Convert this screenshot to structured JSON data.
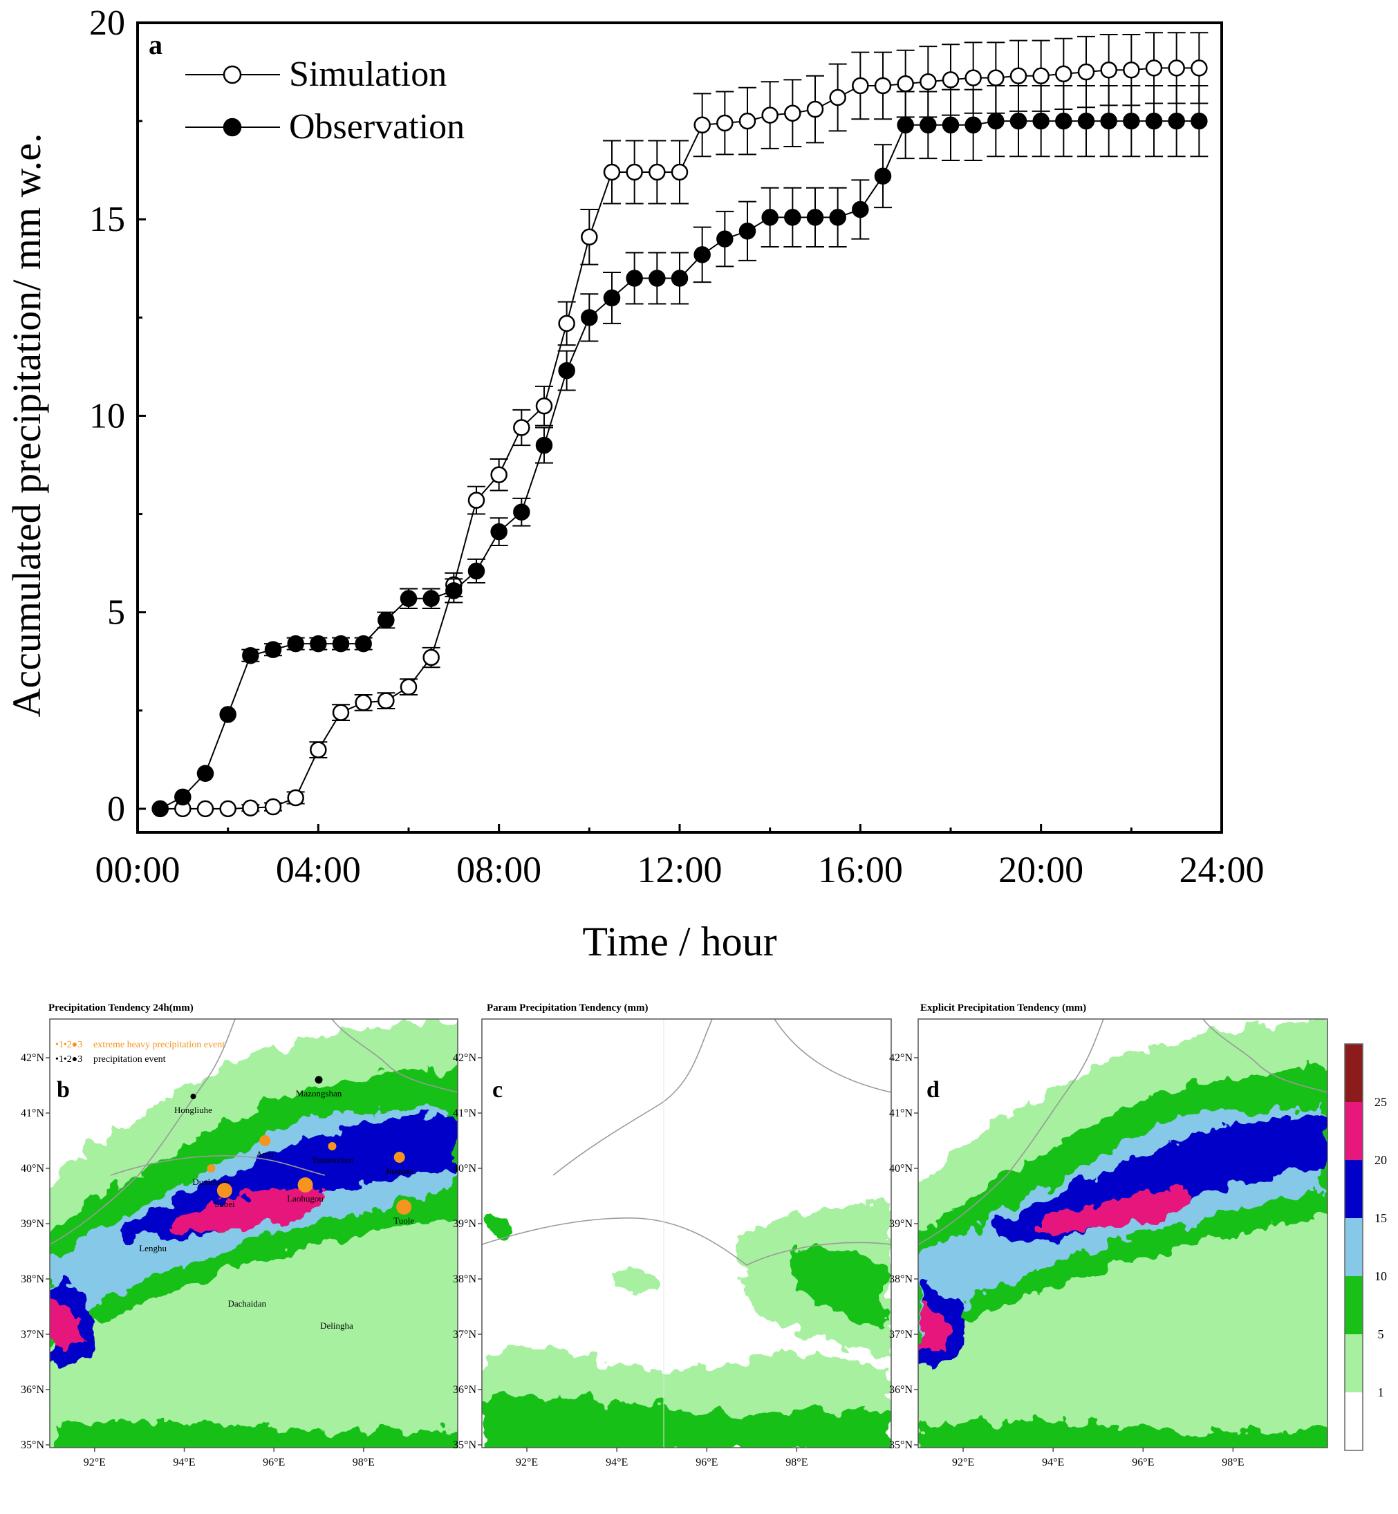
{
  "chart_data": [
    {
      "panel": "a",
      "type": "line",
      "xlabel": "Time / hour",
      "ylabel": "Accumulated precipitation/ mm w.e.",
      "xlim": [
        0,
        24
      ],
      "ylim": [
        -0.6,
        20
      ],
      "x_tick_labels": [
        "00:00",
        "04:00",
        "08:00",
        "12:00",
        "16:00",
        "20:00",
        "24:00"
      ],
      "x_tick_values": [
        0,
        4,
        8,
        12,
        16,
        20,
        24
      ],
      "y_tick_values": [
        0,
        5,
        10,
        15,
        20
      ],
      "y_tick_labels": [
        "0",
        "5",
        "10",
        "15",
        "20"
      ],
      "legend_position": "top-left",
      "x": [
        0.5,
        1,
        1.5,
        2,
        2.5,
        3,
        3.5,
        4,
        4.5,
        5,
        5.5,
        6,
        6.5,
        7,
        7.5,
        8,
        8.5,
        9,
        9.5,
        10,
        10.5,
        11,
        11.5,
        12,
        12.5,
        13,
        13.5,
        14,
        14.5,
        15,
        15.5,
        16,
        16.5,
        17,
        17.5,
        18,
        18.5,
        19,
        19.5,
        20,
        20.5,
        21,
        21.5,
        22,
        22.5,
        23,
        23.5
      ],
      "series": [
        {
          "name": "Simulation",
          "marker": "open-circle",
          "values": [
            0,
            0,
            0,
            0,
            0.02,
            0.05,
            0.28,
            1.5,
            2.45,
            2.7,
            2.75,
            3.1,
            3.85,
            5.7,
            7.85,
            8.5,
            9.7,
            10.25,
            12.35,
            14.55,
            16.2,
            16.2,
            16.2,
            16.2,
            17.4,
            17.45,
            17.5,
            17.65,
            17.7,
            17.8,
            18.1,
            18.4,
            18.4,
            18.45,
            18.5,
            18.55,
            18.6,
            18.6,
            18.65,
            18.65,
            18.7,
            18.75,
            18.8,
            18.8,
            18.85,
            18.85,
            18.85
          ],
          "errors": [
            0,
            0,
            0,
            0,
            0.08,
            0.1,
            0.15,
            0.2,
            0.2,
            0.2,
            0.2,
            0.2,
            0.25,
            0.3,
            0.35,
            0.4,
            0.45,
            0.5,
            0.55,
            0.7,
            0.8,
            0.8,
            0.8,
            0.8,
            0.8,
            0.8,
            0.85,
            0.85,
            0.85,
            0.85,
            0.85,
            0.85,
            0.85,
            0.85,
            0.9,
            0.9,
            0.9,
            0.9,
            0.9,
            0.9,
            0.9,
            0.9,
            0.9,
            0.9,
            0.9,
            0.9,
            0.9
          ]
        },
        {
          "name": "Observation",
          "marker": "filled-circle",
          "values": [
            0,
            0.3,
            0.9,
            2.4,
            3.9,
            4.05,
            4.2,
            4.2,
            4.2,
            4.2,
            4.8,
            5.35,
            5.35,
            5.55,
            6.05,
            7.05,
            7.55,
            9.25,
            11.15,
            12.5,
            13.0,
            13.5,
            13.5,
            13.5,
            14.1,
            14.5,
            14.7,
            15.05,
            15.05,
            15.05,
            15.05,
            15.25,
            16.1,
            17.4,
            17.4,
            17.4,
            17.4,
            17.5,
            17.5,
            17.5,
            17.5,
            17.5,
            17.5,
            17.5,
            17.5,
            17.5,
            17.5
          ],
          "errors": [
            0,
            0,
            0,
            0,
            0.15,
            0.15,
            0.15,
            0.15,
            0.15,
            0.15,
            0.2,
            0.25,
            0.25,
            0.3,
            0.3,
            0.35,
            0.35,
            0.45,
            0.5,
            0.6,
            0.65,
            0.65,
            0.65,
            0.65,
            0.7,
            0.7,
            0.75,
            0.75,
            0.75,
            0.75,
            0.75,
            0.75,
            0.8,
            0.85,
            0.85,
            0.9,
            0.9,
            0.9,
            0.9,
            0.9,
            0.9,
            0.9,
            0.9,
            0.9,
            0.9,
            0.9,
            0.9
          ]
        }
      ]
    },
    {
      "panel": "b",
      "type": "heatmap",
      "title": "Precipitation Tendency 24h(mm)",
      "legend_text": {
        "extreme_numbers": "•1•2●3",
        "extreme_label": "extreme heavy precipitation event",
        "normal_numbers": "•1•2●3",
        "normal_label": "precipitation event"
      },
      "stations": [
        {
          "name": "Hongliuhe",
          "lon": 94.2,
          "lat": 41.3,
          "event": "precipitation",
          "level": 1
        },
        {
          "name": "Mazongshan",
          "lon": 97.0,
          "lat": 41.6,
          "event": "precipitation",
          "level": 2
        },
        {
          "name": "Anxi",
          "lon": 95.8,
          "lat": 40.5,
          "event": "extreme",
          "level": 2
        },
        {
          "name": "Yumenzhen",
          "lon": 97.3,
          "lat": 40.4,
          "event": "extreme",
          "level": 1
        },
        {
          "name": "Jiuquan",
          "lon": 98.8,
          "lat": 40.2,
          "event": "extreme",
          "level": 2
        },
        {
          "name": "Dunhuang",
          "lon": 94.6,
          "lat": 40.0,
          "event": "extreme",
          "level": 1
        },
        {
          "name": "Subei",
          "lon": 94.9,
          "lat": 39.6,
          "event": "extreme",
          "level": 3
        },
        {
          "name": "Laohugou",
          "lon": 96.7,
          "lat": 39.7,
          "event": "extreme",
          "level": 3
        },
        {
          "name": "Tuole",
          "lon": 98.9,
          "lat": 39.3,
          "event": "extreme",
          "level": 3
        },
        {
          "name": "Lenghu",
          "lon": 93.3,
          "lat": 38.8,
          "event": "none"
        },
        {
          "name": "Dachaidan",
          "lon": 95.4,
          "lat": 37.8,
          "event": "none"
        },
        {
          "name": "Delingha",
          "lon": 97.4,
          "lat": 37.4,
          "event": "none"
        }
      ]
    },
    {
      "panel": "c",
      "type": "heatmap",
      "title": "Param Precipitation Tendency (mm)"
    },
    {
      "panel": "d",
      "type": "heatmap",
      "title": "Explicit Precipitation Tendency (mm)"
    }
  ],
  "map": {
    "lon_ticks": [
      "92°E",
      "94°E",
      "96°E",
      "98°E"
    ],
    "lon_values": [
      92,
      94,
      96,
      98
    ],
    "lat_ticks": [
      "35°N",
      "36°N",
      "37°N",
      "38°N",
      "39°N",
      "40°N",
      "41°N",
      "42°N"
    ],
    "lat_values": [
      35,
      36,
      37,
      38,
      39,
      40,
      41,
      42
    ],
    "lon_range": [
      91.0,
      100.1
    ],
    "lat_range": [
      34.95,
      42.7
    ]
  },
  "colorbar": {
    "labels": [
      "1",
      "5",
      "10",
      "15",
      "20",
      "25"
    ],
    "colors": [
      "#ffffff",
      "#a6f0a0",
      "#18c018",
      "#86c8e8",
      "#0000c8",
      "#e6187c",
      "#8c1c1c"
    ]
  }
}
